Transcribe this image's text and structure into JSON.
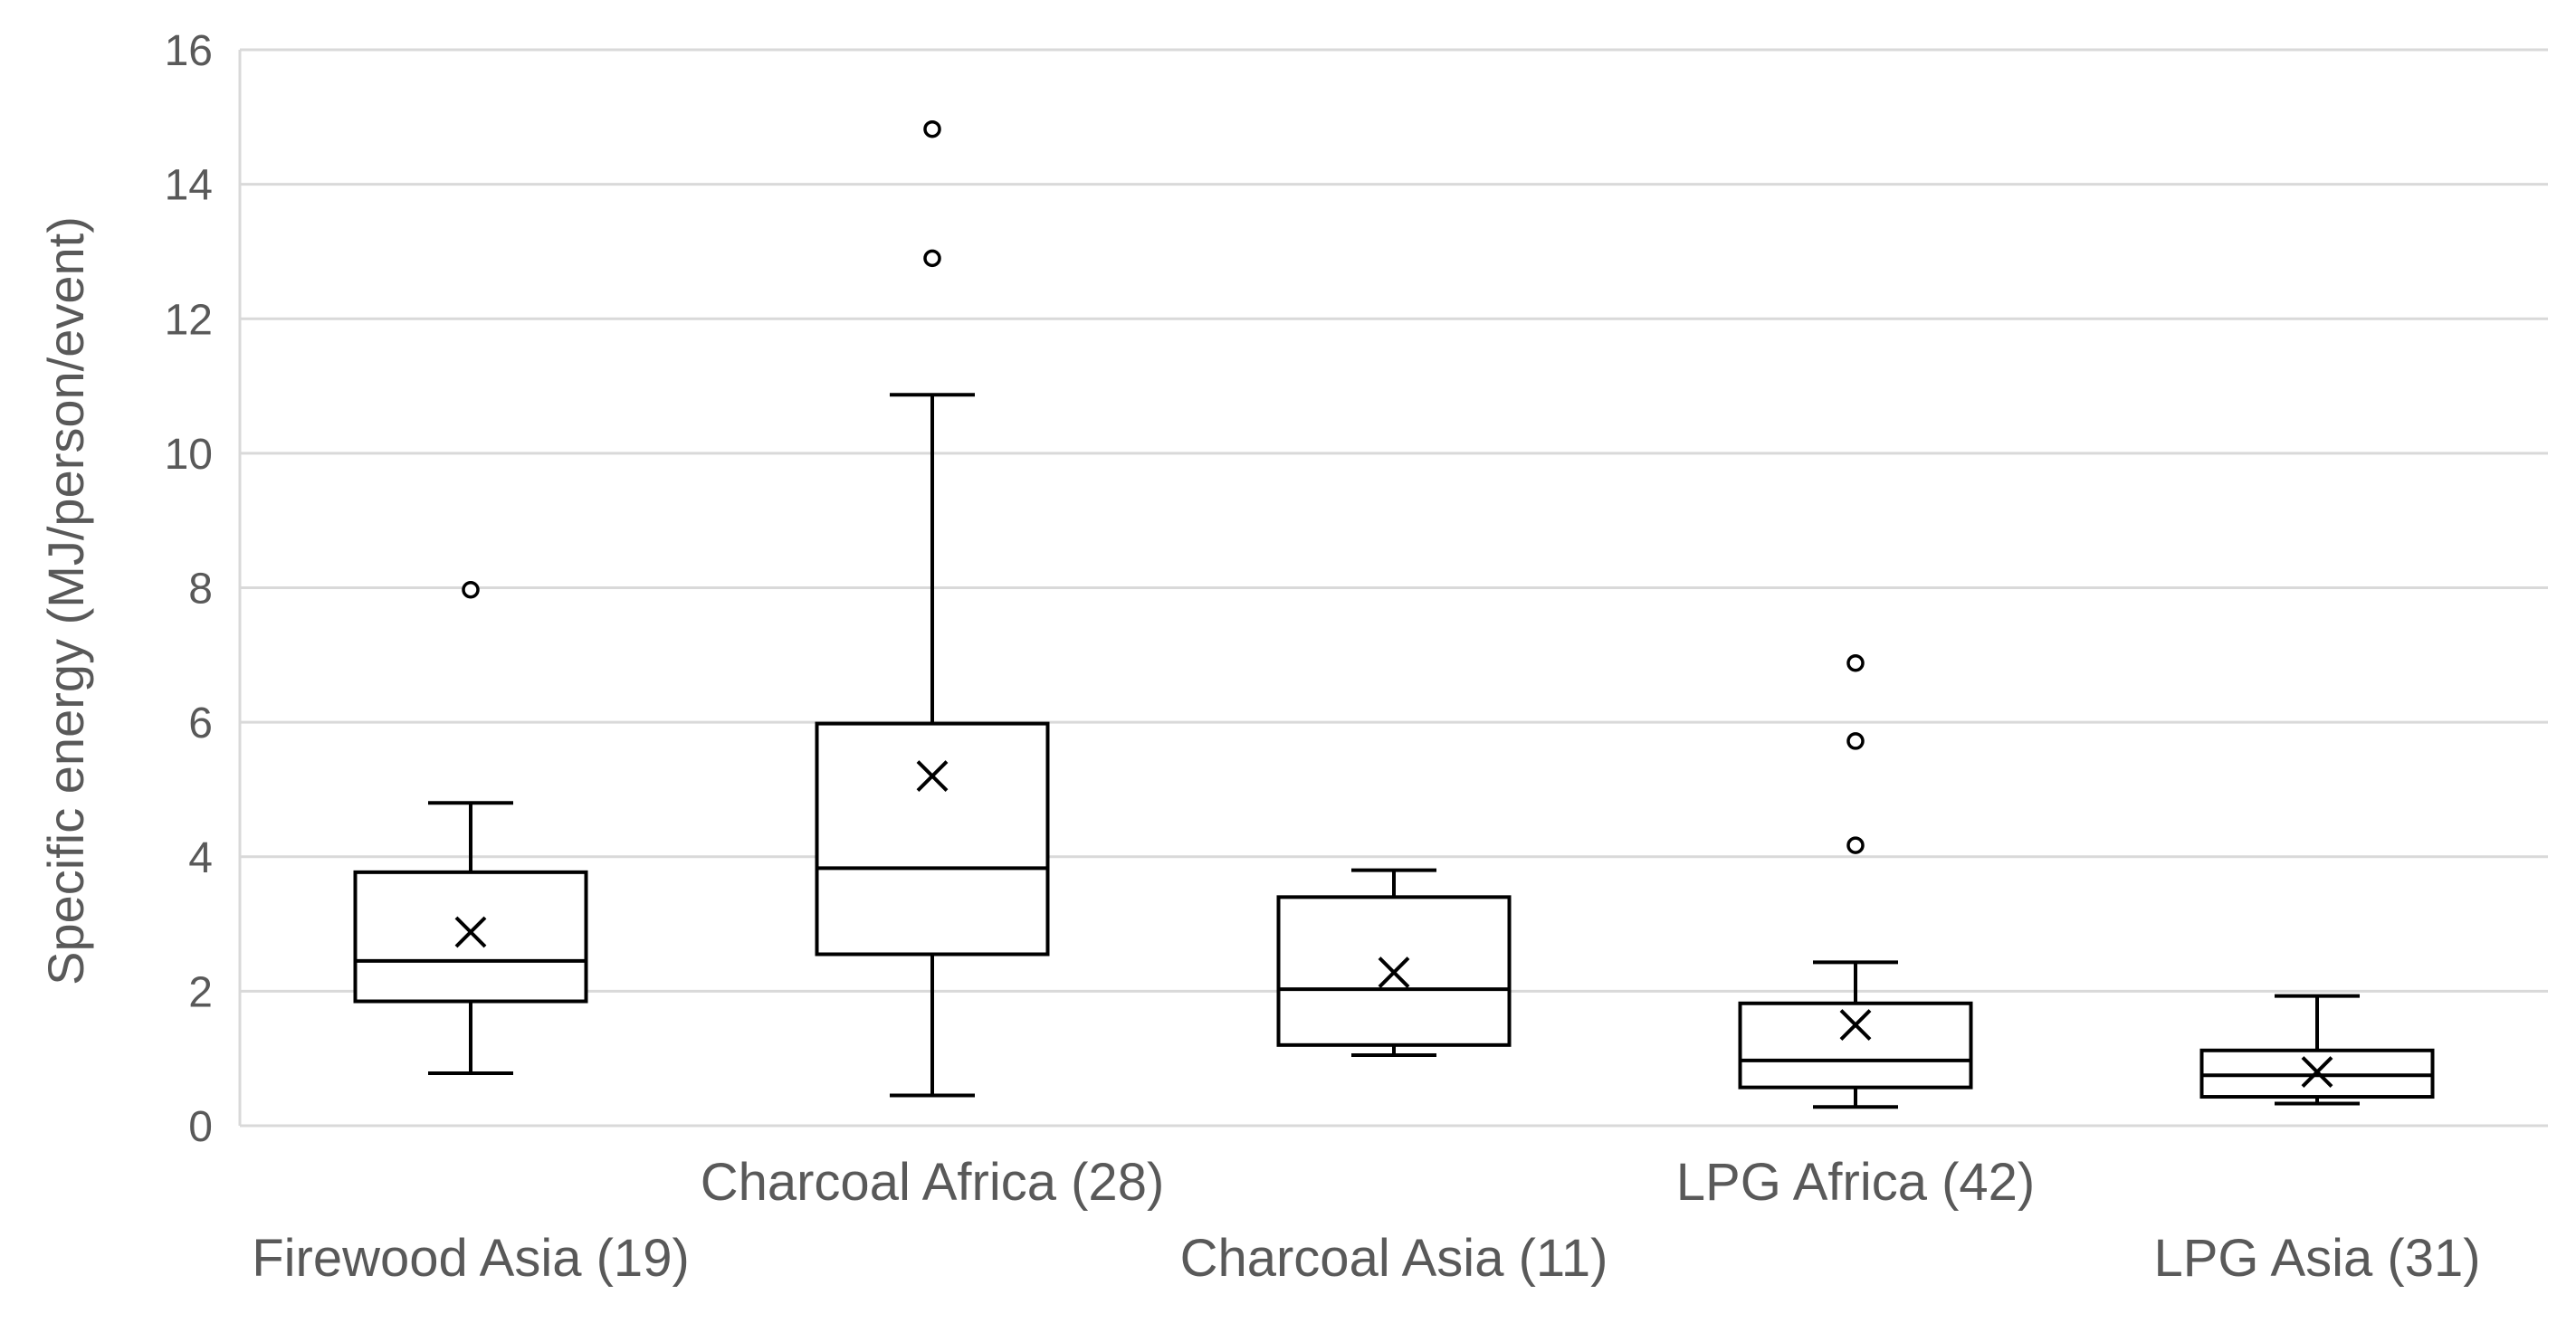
{
  "chart_data": {
    "type": "box",
    "title": "",
    "xlabel": "",
    "ylabel": "Specific energy (MJ/person/event)",
    "ylim": [
      0,
      16
    ],
    "yticks": [
      0,
      2,
      4,
      6,
      8,
      10,
      12,
      14,
      16
    ],
    "grid": true,
    "legend": "none",
    "categories": [
      "Firewood Asia (19)",
      "Charcoal Africa (28)",
      "Charcoal Asia (11)",
      "LPG Africa (42)",
      "LPG Asia (31)"
    ],
    "boxes": [
      {
        "category": "Firewood Asia (19)",
        "min": 0.78,
        "q1": 1.85,
        "median": 2.45,
        "q3": 3.77,
        "max": 4.8,
        "mean": 2.88,
        "outliers": [
          7.97
        ]
      },
      {
        "category": "Charcoal Africa (28)",
        "min": 0.45,
        "q1": 2.55,
        "median": 3.83,
        "q3": 5.98,
        "max": 10.87,
        "mean": 5.2,
        "outliers": [
          12.9,
          14.82
        ]
      },
      {
        "category": "Charcoal Asia (11)",
        "min": 1.05,
        "q1": 1.2,
        "median": 2.03,
        "q3": 3.4,
        "max": 3.8,
        "mean": 2.28,
        "outliers": []
      },
      {
        "category": "LPG Africa (42)",
        "min": 0.28,
        "q1": 0.57,
        "median": 0.97,
        "q3": 1.82,
        "max": 2.43,
        "mean": 1.5,
        "outliers": [
          4.17,
          5.72,
          6.88
        ]
      },
      {
        "category": "LPG Asia (31)",
        "min": 0.33,
        "q1": 0.43,
        "median": 0.75,
        "q3": 1.12,
        "max": 1.93,
        "mean": 0.8,
        "outliers": []
      }
    ]
  }
}
